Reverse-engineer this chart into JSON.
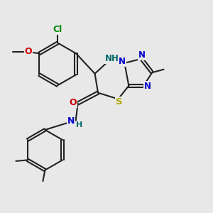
{
  "bg_color": "#e8e8e8",
  "bond_color": "#222222",
  "bond_width": 1.5,
  "atom_colors": {
    "N": "#0000cc",
    "O": "#cc0000",
    "S": "#aaaa00",
    "Cl": "#008800",
    "NH": "#006666",
    "H": "#006666"
  },
  "font_size": 8.5,
  "figsize": [
    3.0,
    3.0
  ],
  "dpi": 100
}
